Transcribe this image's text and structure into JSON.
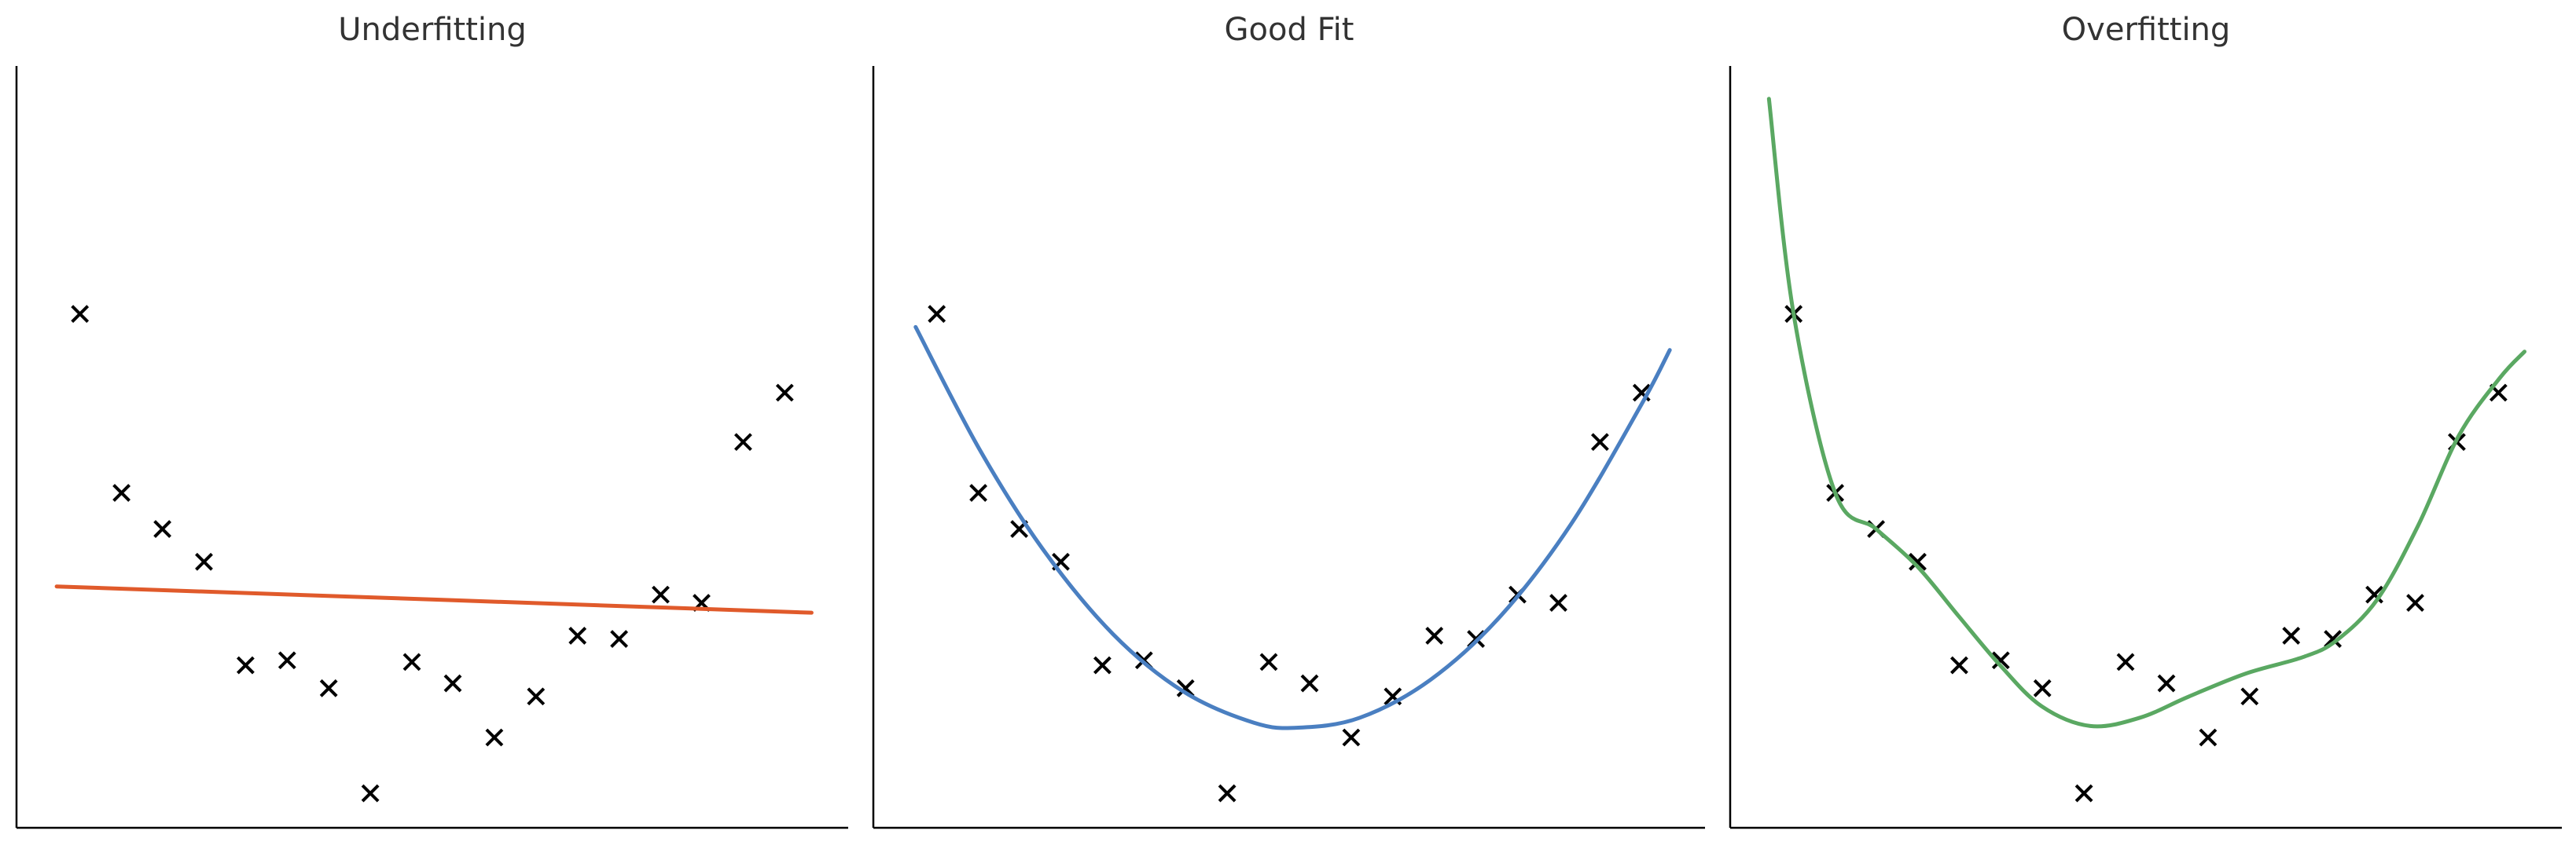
{
  "chart_data": [
    {
      "type": "line",
      "title": "Underfitting",
      "xlim": [
        -0.09,
        1.09
      ],
      "ylim": [
        0,
        46.4
      ],
      "series": [
        {
          "type": "scatter",
          "color": "#000000",
          "x": [
            0,
            0.059,
            0.117,
            0.176,
            0.235,
            0.294,
            0.353,
            0.412,
            0.471,
            0.529,
            0.588,
            0.647,
            0.706,
            0.765,
            0.824,
            0.882,
            0.941,
            1.0
          ],
          "values": [
            31.3,
            20.4,
            18.2,
            16.2,
            9.9,
            10.2,
            8.5,
            2.1,
            10.1,
            8.8,
            5.5,
            8.0,
            11.7,
            11.5,
            14.2,
            13.7,
            23.5,
            26.5
          ]
        },
        {
          "type": "line",
          "color": "#e05a2b",
          "x": [
            -0.033,
            1.038
          ],
          "values": [
            14.7,
            13.1
          ]
        }
      ]
    },
    {
      "type": "line",
      "title": "Good Fit",
      "xlim": [
        -0.09,
        1.09
      ],
      "ylim": [
        0,
        46.4
      ],
      "series": [
        {
          "type": "scatter",
          "color": "#000000",
          "x": [
            0,
            0.059,
            0.117,
            0.176,
            0.235,
            0.294,
            0.353,
            0.412,
            0.471,
            0.529,
            0.588,
            0.647,
            0.706,
            0.765,
            0.824,
            0.882,
            0.941,
            1.0
          ],
          "values": [
            31.3,
            20.4,
            18.2,
            16.2,
            9.9,
            10.2,
            8.5,
            2.1,
            10.1,
            8.8,
            5.5,
            8.0,
            11.7,
            11.5,
            14.2,
            13.7,
            23.5,
            26.5
          ]
        },
        {
          "type": "line",
          "color": "#4a7fc1",
          "x": [
            -0.03,
            0.06,
            0.15,
            0.25,
            0.35,
            0.45,
            0.513,
            0.6,
            0.7,
            0.8,
            0.9,
            1.0,
            1.04
          ],
          "values": [
            30.5,
            23.1,
            17.0,
            11.8,
            8.3,
            6.4,
            6.1,
            6.7,
            9.0,
            12.9,
            18.5,
            25.8,
            29.1
          ]
        }
      ]
    },
    {
      "type": "line",
      "title": "Overfitting",
      "xlim": [
        -0.09,
        1.09
      ],
      "ylim": [
        0,
        46.4
      ],
      "series": [
        {
          "type": "scatter",
          "color": "#000000",
          "x": [
            0,
            0.059,
            0.117,
            0.176,
            0.235,
            0.294,
            0.353,
            0.412,
            0.471,
            0.529,
            0.588,
            0.647,
            0.706,
            0.765,
            0.824,
            0.882,
            0.941,
            1.0
          ],
          "values": [
            31.3,
            20.4,
            18.2,
            16.2,
            9.9,
            10.2,
            8.5,
            2.1,
            10.1,
            8.8,
            5.5,
            8.0,
            11.7,
            11.5,
            14.2,
            13.7,
            23.5,
            26.5
          ]
        },
        {
          "type": "line",
          "color": "#5aa862",
          "x": [
            -0.035,
            0,
            0.059,
            0.117,
            0.176,
            0.234,
            0.293,
            0.352,
            0.421,
            0.491,
            0.561,
            0.642,
            0.723,
            0.77,
            0.828,
            0.886,
            0.944,
            1.002,
            1.037
          ],
          "values": [
            44.4,
            31.3,
            20.4,
            18.2,
            15.9,
            12.9,
            9.9,
            7.4,
            6.2,
            6.7,
            8.0,
            9.4,
            10.4,
            11.4,
            13.9,
            18.4,
            23.9,
            27.4,
            29.0
          ]
        }
      ]
    }
  ]
}
